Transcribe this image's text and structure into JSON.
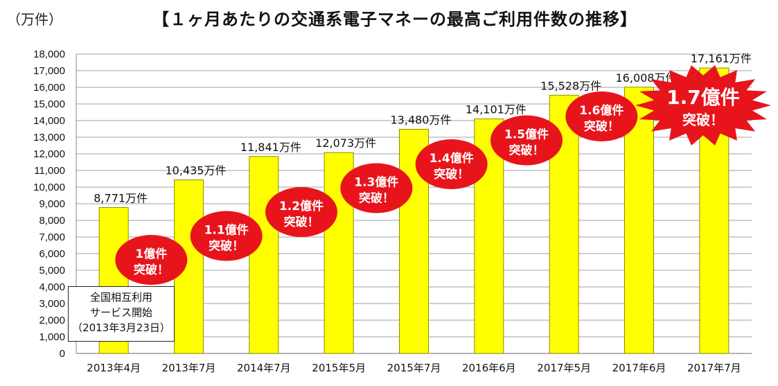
{
  "header": {
    "unit_label": "（万件）",
    "title": "【１ヶ月あたりの交通系電子マネーの最高ご利用件数の推移】"
  },
  "note": {
    "line1": "全国相互利用",
    "line2": "サービス開始",
    "line3": "（2013年3月23日）"
  },
  "chart_data": {
    "type": "bar",
    "title": "【１ヶ月あたりの交通系電子マネーの最高ご利用件数の推移】",
    "ylabel": "（万件）",
    "xlabel": "",
    "ylim": [
      0,
      18000
    ],
    "ytick_step": 1000,
    "grid": true,
    "categories": [
      "2013年4月",
      "2013年7月",
      "2014年7月",
      "2015年5月",
      "2015年7月",
      "2016年6月",
      "2017年5月",
      "2017年6月",
      "2017年7月"
    ],
    "values": [
      8771,
      10435,
      11841,
      12073,
      13480,
      14101,
      15528,
      16008,
      17161
    ],
    "data_labels": [
      "8,771万件",
      "10,435万件",
      "11,841万件",
      "12,073万件",
      "13,480万件",
      "14,101万件",
      "15,528万件",
      "16,008万件",
      "17,161万件"
    ],
    "ytick_labels": [
      "0",
      "1,000",
      "2,000",
      "3,000",
      "4,000",
      "5,000",
      "6,000",
      "7,000",
      "8,000",
      "9,000",
      "10,000",
      "11,000",
      "12,000",
      "13,000",
      "14,000",
      "15,000",
      "16,000",
      "17,000",
      "18,000"
    ],
    "bar_color": "#FFFF00",
    "bar_edge_color": "#8C8C00",
    "grid_color": "#A0A0A0",
    "annotations": [
      {
        "line1": "1億件",
        "line2": "突破！",
        "near": "2013年7月",
        "shape": "ellipse",
        "color": "#E8141C"
      },
      {
        "line1": "1.1億件",
        "line2": "突破！",
        "near": "2014年7月",
        "shape": "ellipse",
        "color": "#E8141C"
      },
      {
        "line1": "1.2億件",
        "line2": "突破！",
        "near": "2015年5月",
        "shape": "ellipse",
        "color": "#E8141C"
      },
      {
        "line1": "1.3億件",
        "line2": "突破！",
        "near": "2015年7月",
        "shape": "ellipse",
        "color": "#E8141C"
      },
      {
        "line1": "1.4億件",
        "line2": "突破！",
        "near": "2016年6月",
        "shape": "ellipse",
        "color": "#E8141C"
      },
      {
        "line1": "1.5億件",
        "line2": "突破！",
        "near": "2017年5月",
        "shape": "ellipse",
        "color": "#E8141C"
      },
      {
        "line1": "1.6億件",
        "line2": "突破！",
        "near": "2017年6月",
        "shape": "ellipse",
        "color": "#E8141C"
      },
      {
        "line1": "1.7億件",
        "line2": "突破！",
        "near": "2017年7月",
        "shape": "starburst",
        "color": "#E8141C"
      }
    ]
  }
}
